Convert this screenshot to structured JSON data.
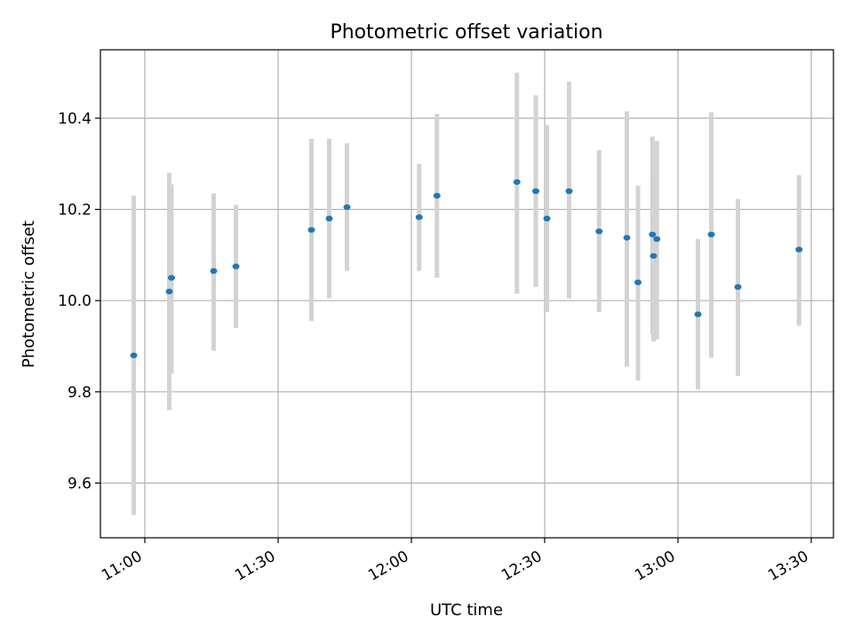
{
  "chart_data": {
    "type": "scatter",
    "title": "Photometric offset variation",
    "xlabel": "UTC time",
    "ylabel": "Photometric offset",
    "x_ticks": [
      "11:00",
      "11:30",
      "12:00",
      "12:30",
      "13:00",
      "13:30"
    ],
    "xlim": [
      "10:50",
      "13:35"
    ],
    "y_ticks": [
      "9.6",
      "9.8",
      "10.0",
      "10.2",
      "10.4"
    ],
    "ylim": [
      9.48,
      10.55
    ],
    "grid": true,
    "colors": {
      "points": "#1f77b4",
      "errorbars": "#d3d3d3"
    },
    "series": [
      {
        "points": [
          {
            "x": "10:57:30",
            "y": 9.88,
            "ylo": 9.53,
            "yhi": 10.23
          },
          {
            "x": "11:05:30",
            "y": 10.02,
            "ylo": 9.76,
            "yhi": 10.28
          },
          {
            "x": "11:06:00",
            "y": 10.05,
            "ylo": 9.84,
            "yhi": 10.255
          },
          {
            "x": "11:15:30",
            "y": 10.065,
            "ylo": 9.89,
            "yhi": 10.235
          },
          {
            "x": "11:20:30",
            "y": 10.075,
            "ylo": 9.94,
            "yhi": 10.21
          },
          {
            "x": "11:37:30",
            "y": 10.155,
            "ylo": 9.955,
            "yhi": 10.355
          },
          {
            "x": "11:41:30",
            "y": 10.18,
            "ylo": 10.005,
            "yhi": 10.355
          },
          {
            "x": "11:45:30",
            "y": 10.205,
            "ylo": 10.065,
            "yhi": 10.345
          },
          {
            "x": "12:01:45",
            "y": 10.183,
            "ylo": 10.065,
            "yhi": 10.3
          },
          {
            "x": "12:05:45",
            "y": 10.23,
            "ylo": 10.05,
            "yhi": 10.41
          },
          {
            "x": "12:23:45",
            "y": 10.26,
            "ylo": 10.015,
            "yhi": 10.5
          },
          {
            "x": "12:28:00",
            "y": 10.24,
            "ylo": 10.03,
            "yhi": 10.45
          },
          {
            "x": "12:30:30",
            "y": 10.18,
            "ylo": 9.975,
            "yhi": 10.385
          },
          {
            "x": "12:35:30",
            "y": 10.24,
            "ylo": 10.005,
            "yhi": 10.48
          },
          {
            "x": "12:42:15",
            "y": 10.152,
            "ylo": 9.975,
            "yhi": 10.33
          },
          {
            "x": "12:48:30",
            "y": 10.138,
            "ylo": 9.855,
            "yhi": 10.415
          },
          {
            "x": "12:51:00",
            "y": 10.04,
            "ylo": 9.825,
            "yhi": 10.252
          },
          {
            "x": "12:54:15",
            "y": 10.145,
            "ylo": 9.925,
            "yhi": 10.36
          },
          {
            "x": "12:54:30",
            "y": 10.098,
            "ylo": 9.91,
            "yhi": 10.285
          },
          {
            "x": "12:55:15",
            "y": 10.135,
            "ylo": 9.915,
            "yhi": 10.35
          },
          {
            "x": "13:04:30",
            "y": 9.97,
            "ylo": 9.805,
            "yhi": 10.135
          },
          {
            "x": "13:07:30",
            "y": 10.145,
            "ylo": 9.875,
            "yhi": 10.413
          },
          {
            "x": "13:13:30",
            "y": 10.03,
            "ylo": 9.835,
            "yhi": 10.223
          },
          {
            "x": "13:27:15",
            "y": 10.112,
            "ylo": 9.945,
            "yhi": 10.275
          }
        ]
      }
    ]
  }
}
